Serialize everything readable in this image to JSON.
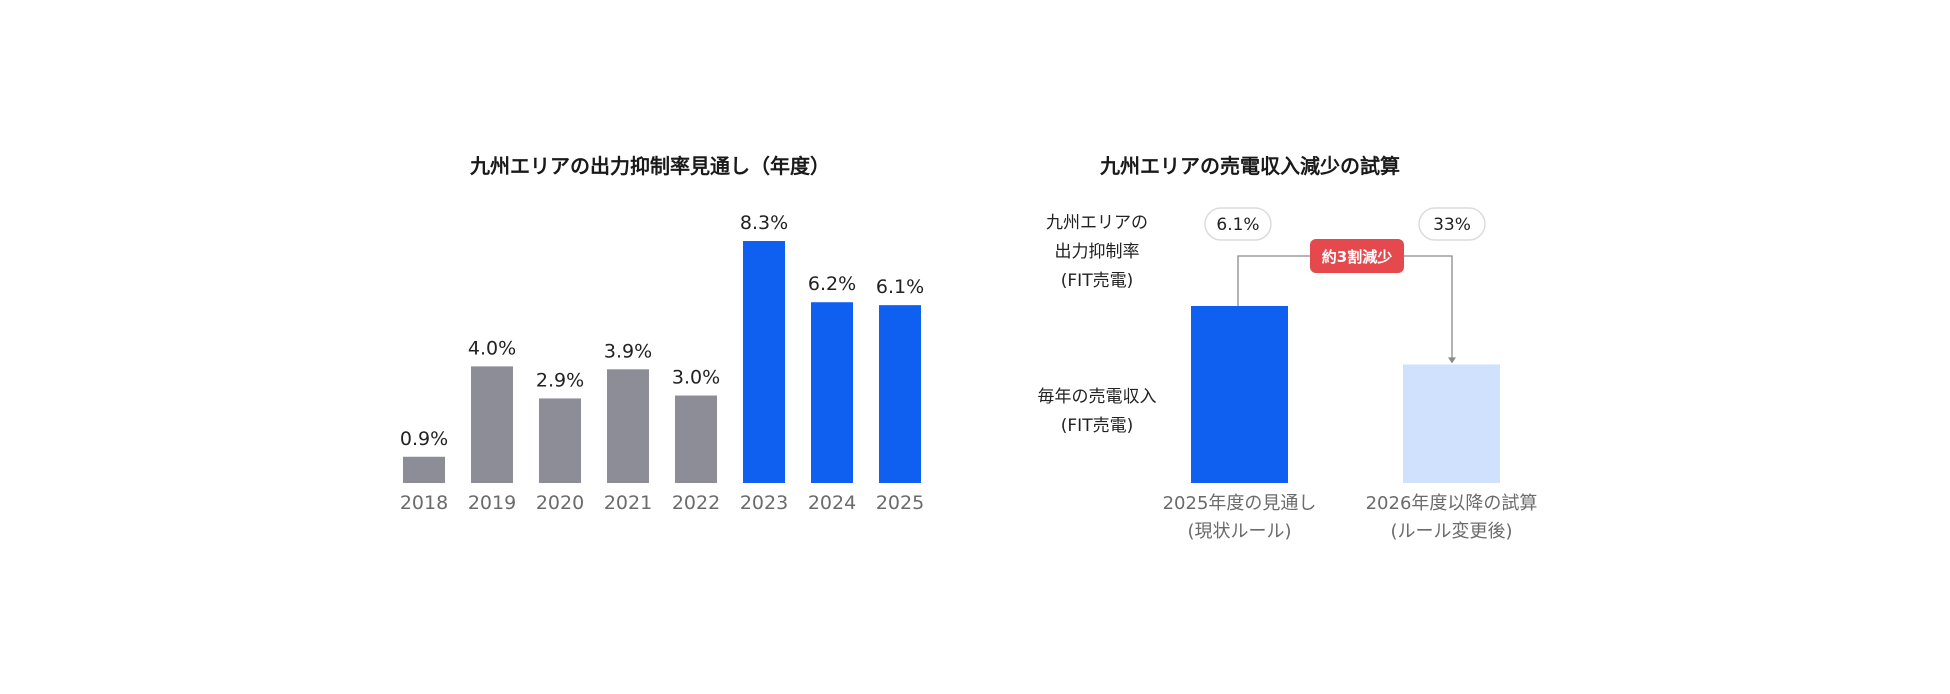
{
  "colors": {
    "gray_bar": "#8c8d97",
    "blue_bar": "#0f5ff0",
    "light_blue_bar": "#cfe1fd",
    "badge_red": "#e5484d",
    "connector": "#8a8a8a"
  },
  "chart_data": [
    {
      "type": "bar",
      "title": "九州エリアの出力抑制率見通し（年度）",
      "categories": [
        "2018",
        "2019",
        "2020",
        "2021",
        "2022",
        "2023",
        "2024",
        "2025"
      ],
      "values": [
        0.9,
        4.0,
        2.9,
        3.9,
        3.0,
        8.3,
        6.2,
        6.1
      ],
      "value_labels": [
        "0.9%",
        "4.0%",
        "2.9%",
        "3.9%",
        "3.0%",
        "8.3%",
        "6.2%",
        "6.1%"
      ],
      "highlight_from_index": 5,
      "ylim": [
        0,
        8.3
      ],
      "grid": false
    },
    {
      "type": "bar",
      "title": "九州エリアの売電収入減少の試算",
      "categories": [
        "2025年度の見通し\n(現状ルール)",
        "2026年度以降の試算\n(ルール変更後)"
      ],
      "category_lines": [
        [
          "2025年度の見通し",
          "(現状ルール)"
        ],
        [
          "2026年度以降の試算",
          "(ルール変更後)"
        ]
      ],
      "values": [
        1.0,
        0.67
      ],
      "curtailment_rate_labels": [
        "6.1%",
        "33%"
      ],
      "row_labels": {
        "rate": [
          "九州エリアの",
          "出力抑制率",
          "(FIT売電)"
        ],
        "revenue": [
          "毎年の売電収入",
          "(FIT売電)"
        ]
      },
      "annotation": "約3割減少",
      "grid": false
    }
  ]
}
